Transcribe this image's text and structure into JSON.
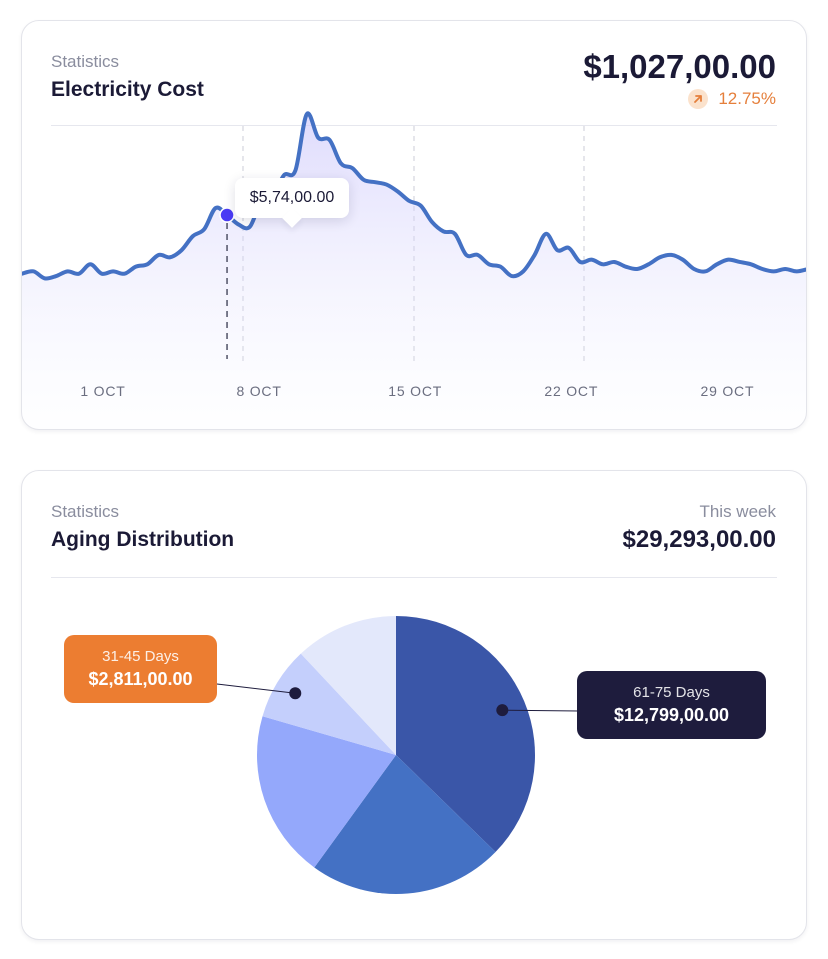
{
  "electricity_card": {
    "eyebrow": "Statistics",
    "title": "Electricity Cost",
    "amount": "$1,027,00.00",
    "change": "12.75%",
    "change_icon": "arrow-up-right-icon",
    "tooltip_value": "$5,74,00.00",
    "colors": {
      "line": "#4471c4",
      "marker": "#4b3cf5",
      "change": "#e57f3b"
    }
  },
  "aging_card": {
    "eyebrow": "Statistics",
    "title": "Aging Distribution",
    "period": "This week",
    "amount": "$29,293,00.00",
    "callouts": [
      {
        "label": "31-45 Days",
        "value": "$2,811,00.00",
        "color": "#ec7d31"
      },
      {
        "label": "61-75 Days",
        "value": "$12,799,00.00",
        "color": "#1e1c3d"
      }
    ]
  },
  "chart_data": [
    {
      "type": "area",
      "x_ticks": [
        "1 OCT",
        "8 OCT",
        "15 OCT",
        "22 OCT",
        "29 OCT"
      ],
      "x": [
        0,
        0.5,
        1,
        1.5,
        2,
        2.5,
        3,
        3.5,
        4,
        4.5,
        5,
        5.5,
        6,
        6.5,
        7,
        7.5,
        8,
        8.5,
        9,
        9.5,
        10,
        10.5,
        11,
        11.5,
        12,
        12.5,
        13,
        13.5,
        14,
        14.5,
        15,
        15.5,
        16,
        16.5,
        17,
        17.5,
        18,
        18.5,
        19,
        19.5,
        20,
        20.5,
        21,
        21.5,
        22,
        22.5,
        23,
        23.5,
        24,
        24.5,
        25,
        25.5,
        26,
        26.5,
        27,
        27.5,
        28,
        28.5,
        29,
        29.5,
        30,
        30.5,
        31,
        31.5,
        32,
        32.5,
        33,
        33.5,
        34,
        34.5
      ],
      "values": [
        2.5,
        2.55,
        2.4,
        2.45,
        2.55,
        2.5,
        2.7,
        2.5,
        2.55,
        2.5,
        2.65,
        2.7,
        2.9,
        2.85,
        3.0,
        3.3,
        3.45,
        3.9,
        3.75,
        3.55,
        3.5,
        4.05,
        4.15,
        4.6,
        4.7,
        5.9,
        5.4,
        5.35,
        4.85,
        4.75,
        4.5,
        4.45,
        4.4,
        4.25,
        4.05,
        3.95,
        3.6,
        3.4,
        3.35,
        2.9,
        2.9,
        2.7,
        2.65,
        2.45,
        2.55,
        2.9,
        3.35,
        3.0,
        3.05,
        2.75,
        2.8,
        2.7,
        2.75,
        2.65,
        2.6,
        2.7,
        2.85,
        2.9,
        2.8,
        2.6,
        2.55,
        2.7,
        2.8,
        2.75,
        2.7,
        2.6,
        2.55,
        2.6,
        2.55,
        2.6
      ],
      "ylim": [
        0,
        6.5
      ],
      "highlight": {
        "x": 9,
        "label": "$5,74,00.00"
      },
      "grid": "dashed vertical lines at week ticks"
    },
    {
      "type": "pie",
      "labels": [
        "61-75 Days",
        "",
        "",
        "31-45 Days",
        ""
      ],
      "values": [
        37.3,
        22.7,
        19.5,
        8.5,
        12.0
      ],
      "colors": [
        "#3a56a8",
        "#4471c4",
        "#94a8fb",
        "#c4cffc",
        "#e3e8fb"
      ],
      "annotated": [
        "61-75 Days",
        "31-45 Days"
      ]
    }
  ]
}
